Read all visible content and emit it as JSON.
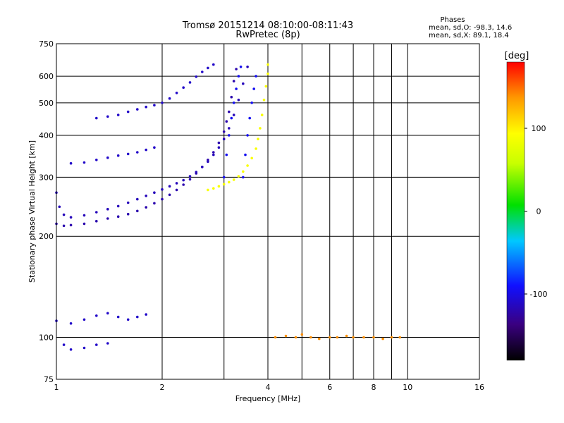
{
  "chart_data": {
    "type": "scatter",
    "title": "Tromsø 20151214 08:10:00-08:11:43",
    "subtitle": "RwPretec (8p)",
    "stats": {
      "heading": "Phases",
      "line_o": "mean, sd,O: -98.3, 14.6",
      "line_x": "mean, sd,X:  89.1, 18.4"
    },
    "xlabel": "Frequency [MHz]",
    "ylabel": "Stationary phase Virtual Height [km]",
    "x_scale": "log",
    "y_scale": "log",
    "xlim": [
      1,
      16
    ],
    "ylim": [
      75,
      750
    ],
    "xticks": [
      1,
      2,
      4,
      6,
      8,
      10,
      16
    ],
    "xminor": [
      3,
      5,
      7,
      9
    ],
    "yticks": [
      75,
      100,
      200,
      300,
      400,
      500,
      600,
      750
    ],
    "grid": true,
    "colorbar": {
      "label": "[deg]",
      "range": [
        -180,
        180
      ],
      "ticks": [
        100,
        0,
        -100
      ]
    },
    "series": [
      {
        "color_value": -120,
        "points": [
          [
            1.0,
            218
          ],
          [
            1.05,
            215
          ],
          [
            1.1,
            216
          ],
          [
            1.2,
            218
          ],
          [
            1.3,
            222
          ],
          [
            1.4,
            226
          ],
          [
            1.5,
            229
          ],
          [
            1.6,
            233
          ],
          [
            1.7,
            238
          ],
          [
            1.8,
            244
          ],
          [
            1.9,
            251
          ],
          [
            2.0,
            258
          ],
          [
            2.1,
            266
          ],
          [
            2.2,
            275
          ],
          [
            2.3,
            285
          ],
          [
            2.4,
            296
          ],
          [
            2.5,
            308
          ],
          [
            2.6,
            322
          ],
          [
            2.7,
            338
          ],
          [
            2.8,
            356
          ],
          [
            2.9,
            380
          ],
          [
            3.0,
            410
          ],
          [
            3.05,
            440
          ],
          [
            3.1,
            470
          ],
          [
            3.15,
            520
          ],
          [
            3.2,
            580
          ],
          [
            3.25,
            630
          ]
        ]
      },
      {
        "color_value": -115,
        "points": [
          [
            1.0,
            270
          ],
          [
            1.02,
            245
          ],
          [
            1.05,
            232
          ],
          [
            1.1,
            228
          ],
          [
            1.2,
            231
          ],
          [
            1.3,
            236
          ],
          [
            1.4,
            241
          ],
          [
            1.5,
            246
          ],
          [
            1.6,
            252
          ],
          [
            1.7,
            258
          ],
          [
            1.8,
            264
          ],
          [
            1.9,
            270
          ],
          [
            2.0,
            276
          ],
          [
            2.1,
            282
          ],
          [
            2.2,
            288
          ],
          [
            2.3,
            294
          ],
          [
            2.4,
            302
          ],
          [
            2.5,
            311
          ],
          [
            2.6,
            322
          ],
          [
            2.7,
            334
          ],
          [
            2.8,
            350
          ],
          [
            2.9,
            368
          ],
          [
            3.0,
            390
          ],
          [
            3.1,
            420
          ],
          [
            3.2,
            460
          ],
          [
            3.3,
            510
          ],
          [
            3.4,
            570
          ],
          [
            3.5,
            640
          ]
        ]
      },
      {
        "color_value": -110,
        "points": [
          [
            1.3,
            450
          ],
          [
            1.4,
            455
          ],
          [
            1.5,
            460
          ],
          [
            1.6,
            470
          ],
          [
            1.7,
            478
          ],
          [
            1.8,
            486
          ],
          [
            1.9,
            492
          ],
          [
            2.0,
            500
          ],
          [
            2.1,
            515
          ],
          [
            2.2,
            535
          ],
          [
            2.3,
            555
          ],
          [
            2.4,
            575
          ],
          [
            2.5,
            598
          ],
          [
            2.6,
            618
          ],
          [
            2.7,
            635
          ],
          [
            2.8,
            650
          ]
        ]
      },
      {
        "color_value": -110,
        "points": [
          [
            1.1,
            330
          ],
          [
            1.2,
            332
          ],
          [
            1.3,
            338
          ],
          [
            1.4,
            343
          ],
          [
            1.5,
            348
          ],
          [
            1.6,
            352
          ],
          [
            1.7,
            356
          ],
          [
            1.8,
            362
          ],
          [
            1.9,
            368
          ]
        ]
      },
      {
        "color_value": -95,
        "points": [
          [
            3.0,
            300
          ],
          [
            3.05,
            350
          ],
          [
            3.1,
            400
          ],
          [
            3.15,
            450
          ],
          [
            3.2,
            500
          ],
          [
            3.25,
            550
          ],
          [
            3.3,
            600
          ],
          [
            3.35,
            640
          ],
          [
            3.4,
            300
          ],
          [
            3.45,
            350
          ],
          [
            3.5,
            400
          ],
          [
            3.55,
            450
          ],
          [
            3.6,
            500
          ],
          [
            3.65,
            550
          ],
          [
            3.7,
            600
          ]
        ]
      },
      {
        "color_value": 90,
        "points": [
          [
            2.7,
            275
          ],
          [
            2.8,
            278
          ],
          [
            2.9,
            282
          ],
          [
            3.0,
            286
          ],
          [
            3.1,
            290
          ],
          [
            3.2,
            295
          ],
          [
            3.3,
            302
          ],
          [
            3.4,
            312
          ],
          [
            3.5,
            325
          ],
          [
            3.6,
            342
          ],
          [
            3.7,
            365
          ],
          [
            3.75,
            390
          ],
          [
            3.8,
            420
          ],
          [
            3.85,
            460
          ],
          [
            3.9,
            510
          ],
          [
            3.95,
            560
          ],
          [
            4.0,
            610
          ],
          [
            4.0,
            650
          ]
        ]
      },
      {
        "color_value": -110,
        "points": [
          [
            1.0,
            112
          ],
          [
            1.1,
            110
          ],
          [
            1.2,
            113
          ],
          [
            1.3,
            116
          ],
          [
            1.4,
            118
          ],
          [
            1.5,
            115
          ],
          [
            1.6,
            113
          ],
          [
            1.7,
            115
          ],
          [
            1.8,
            117
          ],
          [
            1.05,
            95
          ],
          [
            1.1,
            92
          ],
          [
            1.2,
            93
          ],
          [
            1.3,
            95
          ],
          [
            1.4,
            96
          ]
        ]
      },
      {
        "color_value": 140,
        "points": [
          [
            4.2,
            100
          ],
          [
            4.5,
            101
          ],
          [
            4.8,
            100
          ],
          [
            5.0,
            102
          ],
          [
            5.3,
            100
          ],
          [
            5.6,
            99
          ],
          [
            6.0,
            100
          ],
          [
            6.3,
            100
          ],
          [
            6.7,
            101
          ],
          [
            7.0,
            100
          ],
          [
            7.5,
            100
          ],
          [
            8.0,
            100
          ],
          [
            8.5,
            99
          ],
          [
            9.0,
            100
          ],
          [
            9.5,
            100
          ]
        ]
      }
    ]
  }
}
